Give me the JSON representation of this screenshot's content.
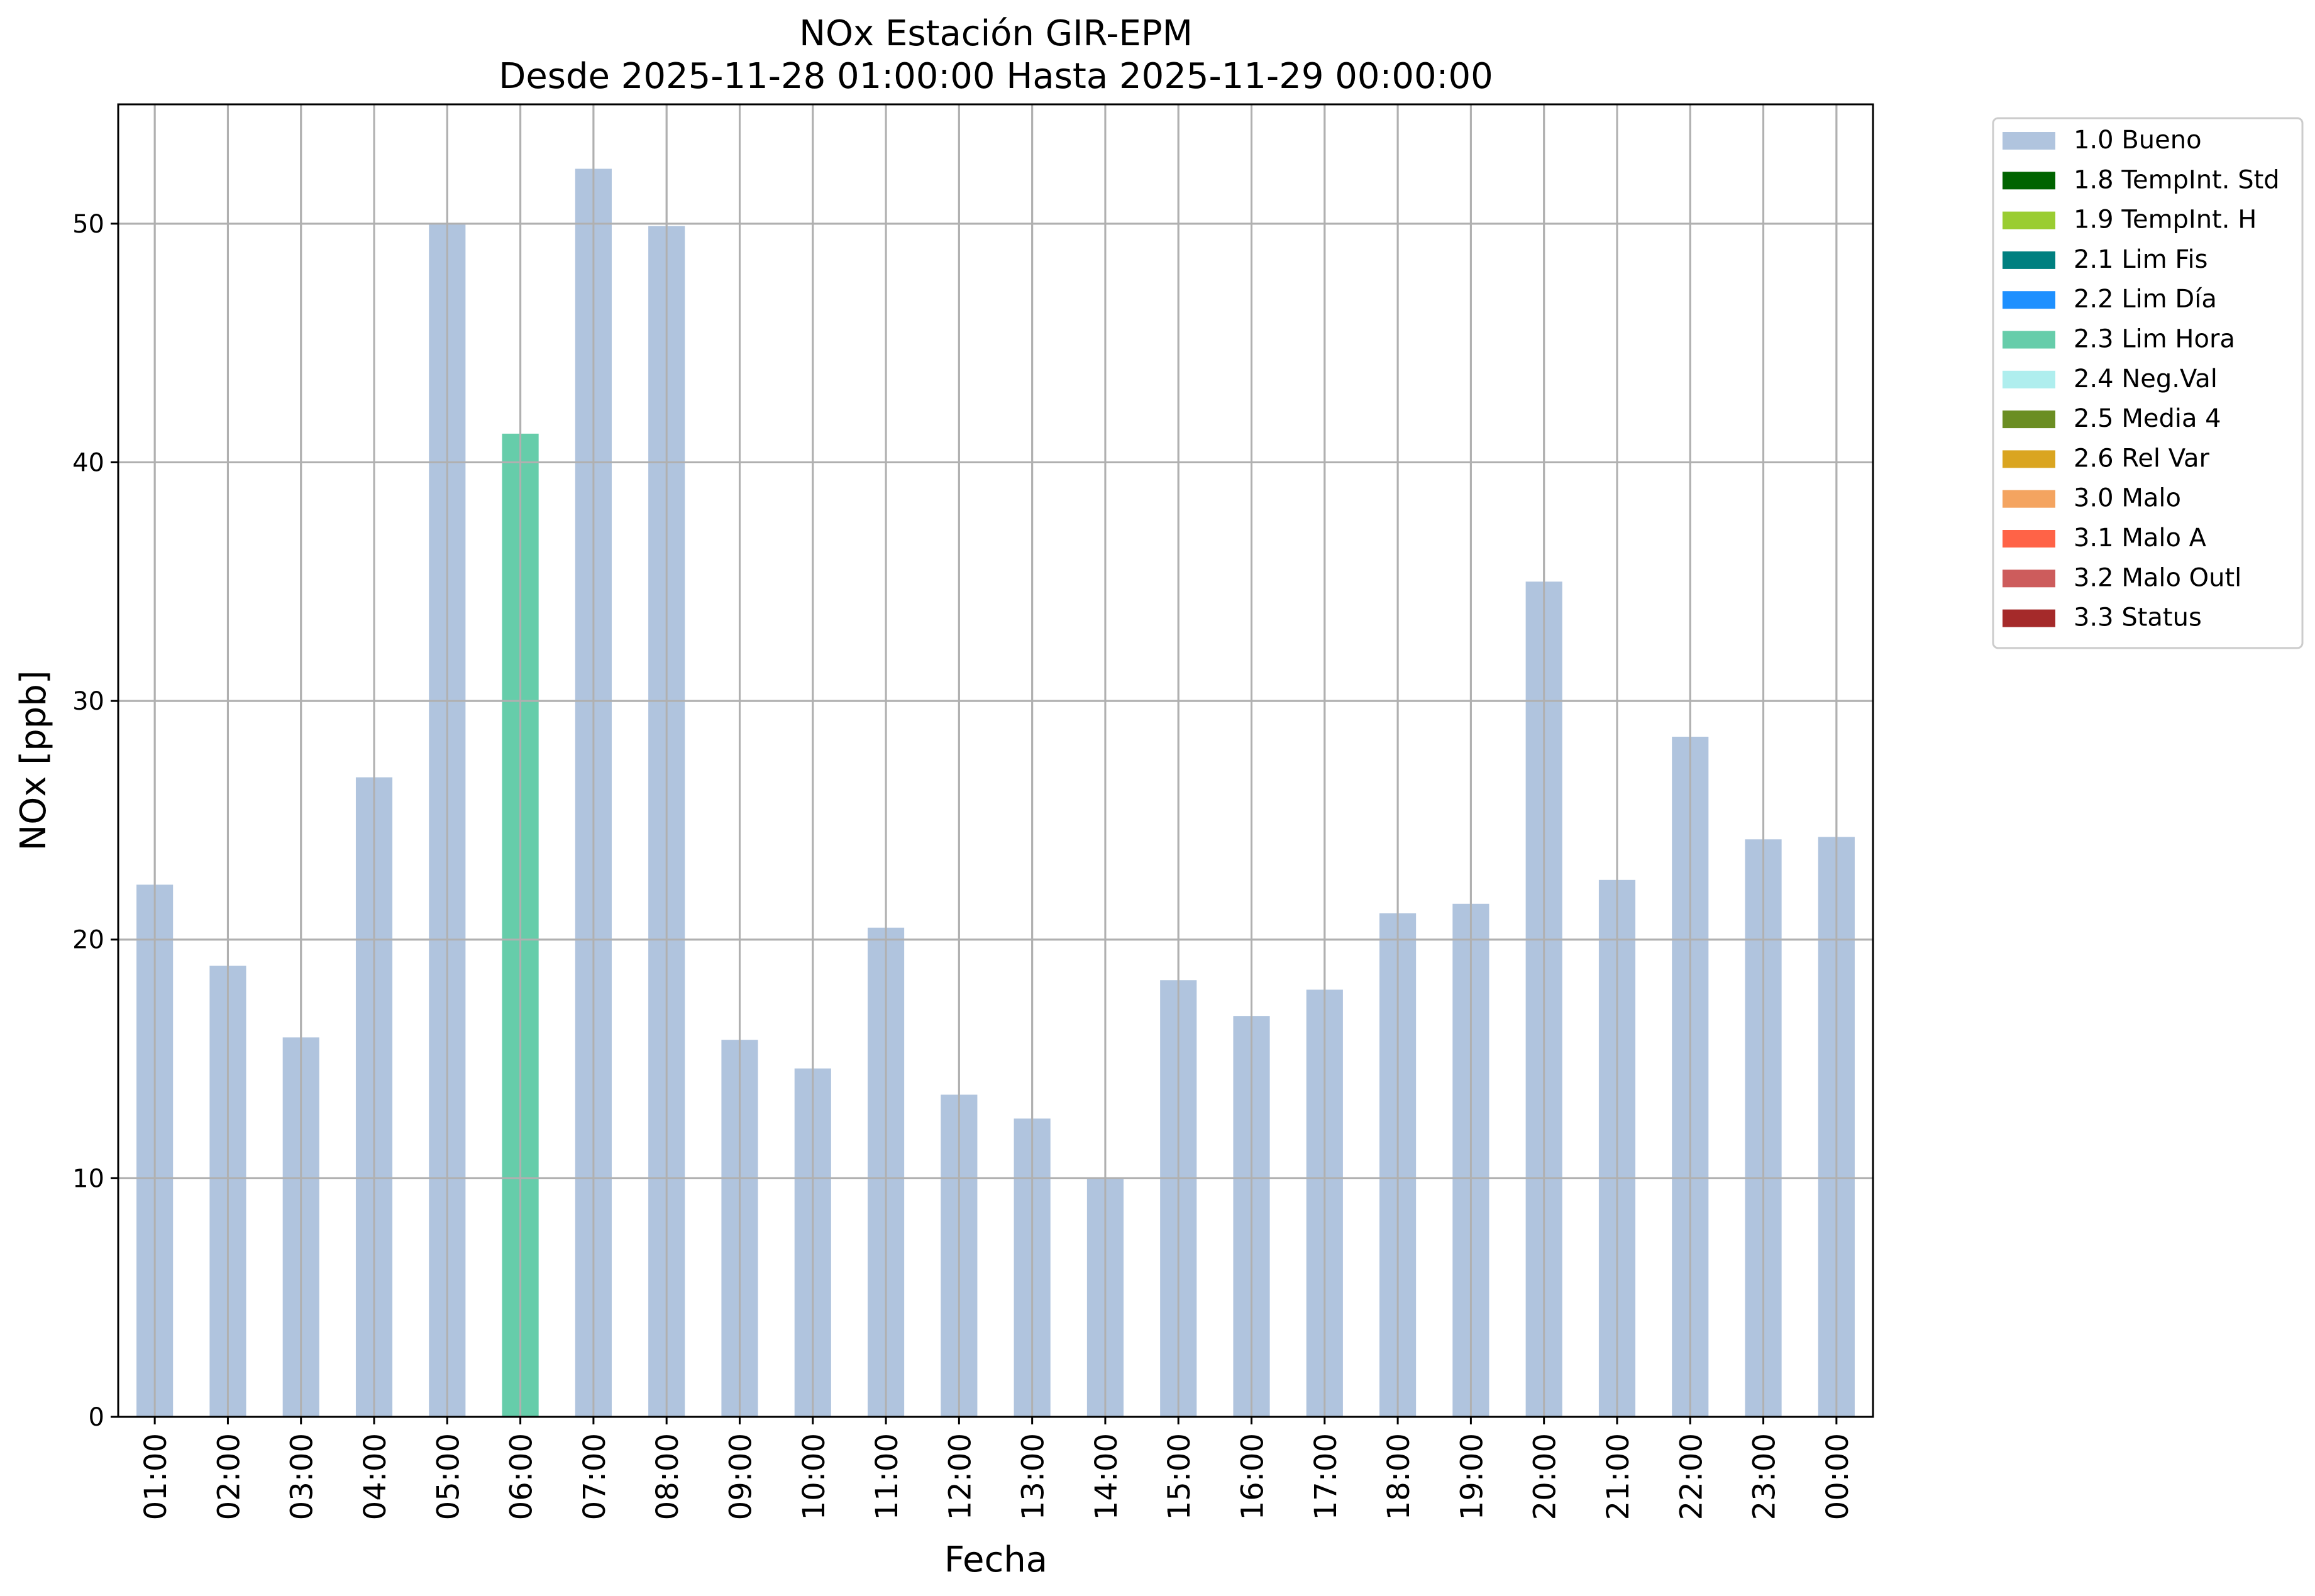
{
  "chart_data": {
    "type": "bar",
    "title": "NOx Estación GIR-EPM",
    "subtitle": "Desde 2025-11-28 01:00:00 Hasta 2025-11-29 00:00:00",
    "xlabel": "Fecha",
    "ylabel": "NOx [ppb]",
    "ylim": [
      0,
      55
    ],
    "yticks": [
      0,
      10,
      20,
      30,
      40,
      50
    ],
    "grid": true,
    "legend_position": "outside top-right",
    "categories": [
      "01:00",
      "02:00",
      "03:00",
      "04:00",
      "05:00",
      "06:00",
      "07:00",
      "08:00",
      "09:00",
      "10:00",
      "11:00",
      "12:00",
      "13:00",
      "14:00",
      "15:00",
      "16:00",
      "17:00",
      "18:00",
      "19:00",
      "20:00",
      "21:00",
      "22:00",
      "23:00",
      "00:00"
    ],
    "values": [
      22.3,
      18.9,
      15.9,
      26.8,
      50.0,
      41.2,
      52.3,
      49.9,
      15.8,
      14.6,
      20.5,
      13.5,
      12.5,
      10.0,
      18.3,
      16.8,
      17.9,
      21.1,
      21.5,
      35.0,
      22.5,
      28.5,
      24.2,
      24.3
    ],
    "bar_flags": [
      "1.0 Bueno",
      "1.0 Bueno",
      "1.0 Bueno",
      "1.0 Bueno",
      "1.0 Bueno",
      "2.3 Lim Hora",
      "1.0 Bueno",
      "1.0 Bueno",
      "1.0 Bueno",
      "1.0 Bueno",
      "1.0 Bueno",
      "1.0 Bueno",
      "1.0 Bueno",
      "1.0 Bueno",
      "1.0 Bueno",
      "1.0 Bueno",
      "1.0 Bueno",
      "1.0 Bueno",
      "1.0 Bueno",
      "1.0 Bueno",
      "1.0 Bueno",
      "1.0 Bueno",
      "1.0 Bueno",
      "1.0 Bueno"
    ],
    "legend": [
      {
        "label": "1.0 Bueno",
        "color": "#b0c4de"
      },
      {
        "label": "1.8 TempInt. Std",
        "color": "#006400"
      },
      {
        "label": "1.9 TempInt. H",
        "color": "#9acd32"
      },
      {
        "label": "2.1 Lim Fis",
        "color": "#008080"
      },
      {
        "label": "2.2 Lim Día",
        "color": "#1e90ff"
      },
      {
        "label": "2.3 Lim Hora",
        "color": "#66cdaa"
      },
      {
        "label": "2.4 Neg.Val",
        "color": "#afeeee"
      },
      {
        "label": "2.5 Media 4",
        "color": "#6b8e23"
      },
      {
        "label": "2.6 Rel Var",
        "color": "#daa520"
      },
      {
        "label": "3.0 Malo",
        "color": "#f4a460"
      },
      {
        "label": "3.1 Malo A",
        "color": "#ff6347"
      },
      {
        "label": "3.2 Malo Outl",
        "color": "#cd5c5c"
      },
      {
        "label": "3.3 Status",
        "color": "#a52a2a"
      }
    ]
  }
}
